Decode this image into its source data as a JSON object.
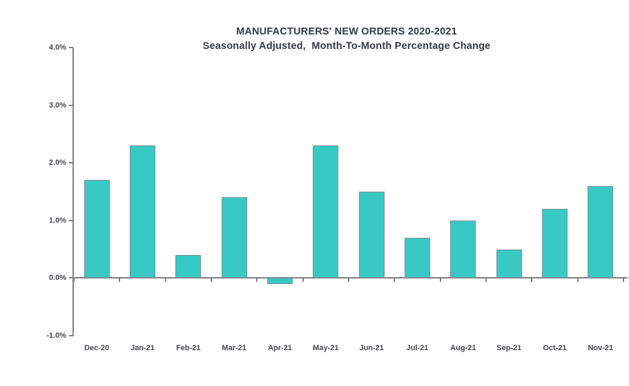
{
  "chart_data": {
    "type": "bar",
    "title": "MANUFACTURERS' NEW ORDERS 2020-2021",
    "subtitle": "Seasonally Adjusted,  Month-To-Month Percentage Change",
    "categories": [
      "Dec-20",
      "Jan-21",
      "Feb-21",
      "Mar-21",
      "Apr-21",
      "May-21",
      "Jun-21",
      "Jul-21",
      "Aug-21",
      "Sep-21",
      "Oct-21",
      "Nov-21"
    ],
    "values": [
      1.7,
      2.3,
      0.4,
      1.4,
      -0.1,
      2.3,
      1.5,
      0.7,
      1.0,
      0.5,
      1.2,
      1.6
    ],
    "xlabel": "",
    "ylabel": "",
    "ylim": [
      -1.0,
      4.0
    ],
    "y_ticks": [
      {
        "value": 4.0,
        "label": "4.0%"
      },
      {
        "value": 3.0,
        "label": "3.0%"
      },
      {
        "value": 2.0,
        "label": "2.0%"
      },
      {
        "value": 1.0,
        "label": "1.0%"
      },
      {
        "value": 0.0,
        "label": "0.0%"
      },
      {
        "value": -1.0,
        "label": "-1.0%"
      }
    ],
    "grid": "off",
    "legend": "none",
    "colors": {
      "background": "#FFFFFF",
      "bar_fill": "#38C9C4",
      "bar_border": "#7E8D96",
      "axis": "#808080",
      "title_text": "#333A42",
      "axis_text": "#44484D"
    }
  }
}
